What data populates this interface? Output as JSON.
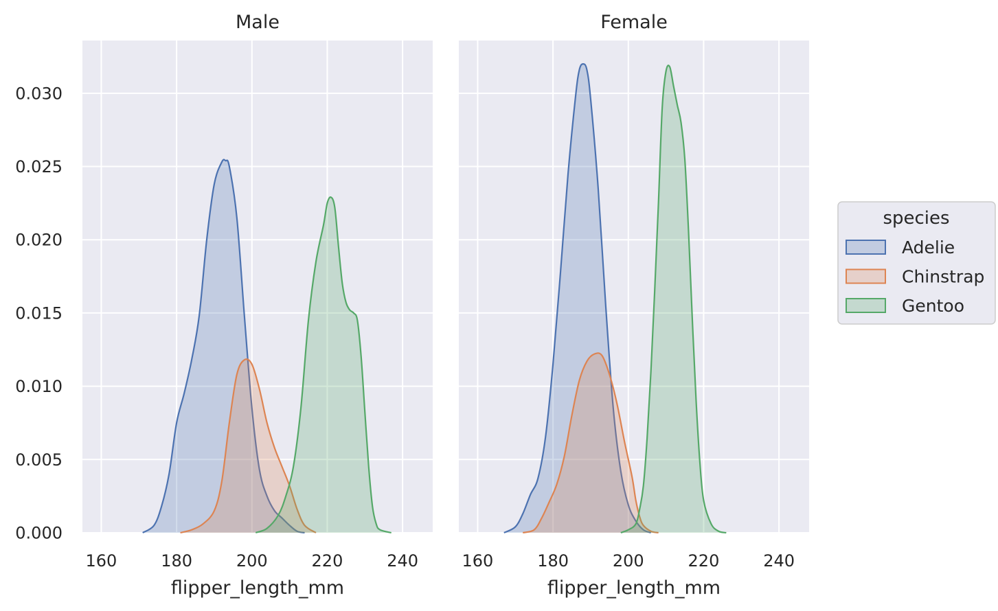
{
  "chart_data": {
    "type": "area",
    "subtype": "kde-density-facets",
    "grid": true,
    "xlim": [
      155,
      248
    ],
    "ylim": [
      0,
      0.0336
    ],
    "x_ticks": [
      160,
      180,
      200,
      220,
      240
    ],
    "x_tick_labels": [
      "160",
      "180",
      "200",
      "220",
      "240"
    ],
    "y_ticks": [
      0,
      0.005,
      0.01,
      0.015,
      0.02,
      0.025,
      0.03
    ],
    "y_tick_labels": [
      "0.000",
      "0.005",
      "0.010",
      "0.015",
      "0.020",
      "0.025",
      "0.030"
    ],
    "xlabel": "flipper_length_mm",
    "ylabel": "",
    "legend": {
      "title": "species",
      "placement": "right",
      "entries": [
        "Adelie",
        "Chinstrap",
        "Gentoo"
      ]
    },
    "series_colors": {
      "Adelie": "#4c72b0",
      "Chinstrap": "#dd8452",
      "Gentoo": "#55a868"
    },
    "panels": [
      {
        "title": "Male",
        "series": [
          {
            "name": "Adelie",
            "points": [
              [
                171,
                0
              ],
              [
                174,
                0.0005
              ],
              [
                176,
                0.0018
              ],
              [
                178,
                0.004
              ],
              [
                180,
                0.0075
              ],
              [
                182,
                0.0095
              ],
              [
                184,
                0.0118
              ],
              [
                186,
                0.0148
              ],
              [
                188,
                0.02
              ],
              [
                190,
                0.0238
              ],
              [
                192,
                0.0253
              ],
              [
                193,
                0.0254
              ],
              [
                194,
                0.025
              ],
              [
                196,
                0.0215
              ],
              [
                198,
                0.0148
              ],
              [
                200,
                0.0085
              ],
              [
                202,
                0.0043
              ],
              [
                204,
                0.0025
              ],
              [
                206,
                0.0015
              ],
              [
                208,
                0.001
              ],
              [
                210,
                0.0005
              ],
              [
                212,
                0.0001
              ],
              [
                214,
                0
              ]
            ]
          },
          {
            "name": "Chinstrap",
            "points": [
              [
                181,
                0
              ],
              [
                184,
                0.0002
              ],
              [
                187,
                0.0006
              ],
              [
                190,
                0.0015
              ],
              [
                192,
                0.0035
              ],
              [
                194,
                0.0075
              ],
              [
                196,
                0.0108
              ],
              [
                198,
                0.0118
              ],
              [
                200,
                0.0115
              ],
              [
                202,
                0.0098
              ],
              [
                204,
                0.0075
              ],
              [
                206,
                0.0058
              ],
              [
                208,
                0.0045
              ],
              [
                210,
                0.0032
              ],
              [
                212,
                0.0016
              ],
              [
                214,
                0.0005
              ],
              [
                217,
                0
              ]
            ]
          },
          {
            "name": "Gentoo",
            "points": [
              [
                201,
                0
              ],
              [
                204,
                0.0003
              ],
              [
                207,
                0.0012
              ],
              [
                209,
                0.0025
              ],
              [
                211,
                0.0045
              ],
              [
                213,
                0.0085
              ],
              [
                215,
                0.0145
              ],
              [
                217,
                0.0185
              ],
              [
                219,
                0.021
              ],
              [
                220,
                0.0225
              ],
              [
                221,
                0.0229
              ],
              [
                222,
                0.0222
              ],
              [
                223,
                0.0195
              ],
              [
                224,
                0.017
              ],
              [
                225,
                0.0157
              ],
              [
                226,
                0.0152
              ],
              [
                227,
                0.015
              ],
              [
                228,
                0.0145
              ],
              [
                229,
                0.012
              ],
              [
                230,
                0.0082
              ],
              [
                231,
                0.0045
              ],
              [
                232,
                0.0018
              ],
              [
                233,
                0.0006
              ],
              [
                234,
                0.0002
              ],
              [
                237,
                0
              ]
            ]
          }
        ]
      },
      {
        "title": "Female",
        "series": [
          {
            "name": "Adelie",
            "points": [
              [
                167,
                0
              ],
              [
                170,
                0.0004
              ],
              [
                172,
                0.0013
              ],
              [
                174,
                0.0026
              ],
              [
                176,
                0.0037
              ],
              [
                178,
                0.0065
              ],
              [
                180,
                0.0115
              ],
              [
                182,
                0.0178
              ],
              [
                184,
                0.0245
              ],
              [
                186,
                0.0298
              ],
              [
                187,
                0.0316
              ],
              [
                188,
                0.032
              ],
              [
                189,
                0.0316
              ],
              [
                190,
                0.0296
              ],
              [
                192,
                0.0235
              ],
              [
                194,
                0.0155
              ],
              [
                196,
                0.0085
              ],
              [
                198,
                0.0042
              ],
              [
                200,
                0.0019
              ],
              [
                202,
                0.0008
              ],
              [
                204,
                0.0002
              ],
              [
                206,
                0
              ]
            ]
          },
          {
            "name": "Chinstrap",
            "points": [
              [
                172,
                0
              ],
              [
                175,
                0.0002
              ],
              [
                177,
                0.001
              ],
              [
                179,
                0.0021
              ],
              [
                181,
                0.0033
              ],
              [
                183,
                0.0052
              ],
              [
                185,
                0.008
              ],
              [
                187,
                0.0104
              ],
              [
                189,
                0.0117
              ],
              [
                191,
                0.0122
              ],
              [
                193,
                0.0121
              ],
              [
                195,
                0.0108
              ],
              [
                197,
                0.0088
              ],
              [
                199,
                0.0062
              ],
              [
                201,
                0.0038
              ],
              [
                202,
                0.0022
              ],
              [
                203,
                0.0011
              ],
              [
                204,
                0.0005
              ],
              [
                206,
                0.0001
              ],
              [
                208,
                0
              ]
            ]
          },
          {
            "name": "Gentoo",
            "points": [
              [
                198,
                0
              ],
              [
                200,
                0.0002
              ],
              [
                202,
                0.0006
              ],
              [
                203,
                0.0016
              ],
              [
                204,
                0.0032
              ],
              [
                205,
                0.0065
              ],
              [
                206,
                0.011
              ],
              [
                207,
                0.0165
              ],
              [
                208,
                0.0225
              ],
              [
                209,
                0.029
              ],
              [
                210,
                0.0315
              ],
              [
                211,
                0.0318
              ],
              [
                212,
                0.0305
              ],
              [
                213,
                0.0292
              ],
              [
                214,
                0.028
              ],
              [
                215,
                0.0255
              ],
              [
                216,
                0.0205
              ],
              [
                217,
                0.0145
              ],
              [
                218,
                0.009
              ],
              [
                219,
                0.0048
              ],
              [
                220,
                0.0022
              ],
              [
                222,
                0.0006
              ],
              [
                224,
                0.0001
              ],
              [
                226,
                0
              ]
            ]
          }
        ]
      }
    ]
  }
}
